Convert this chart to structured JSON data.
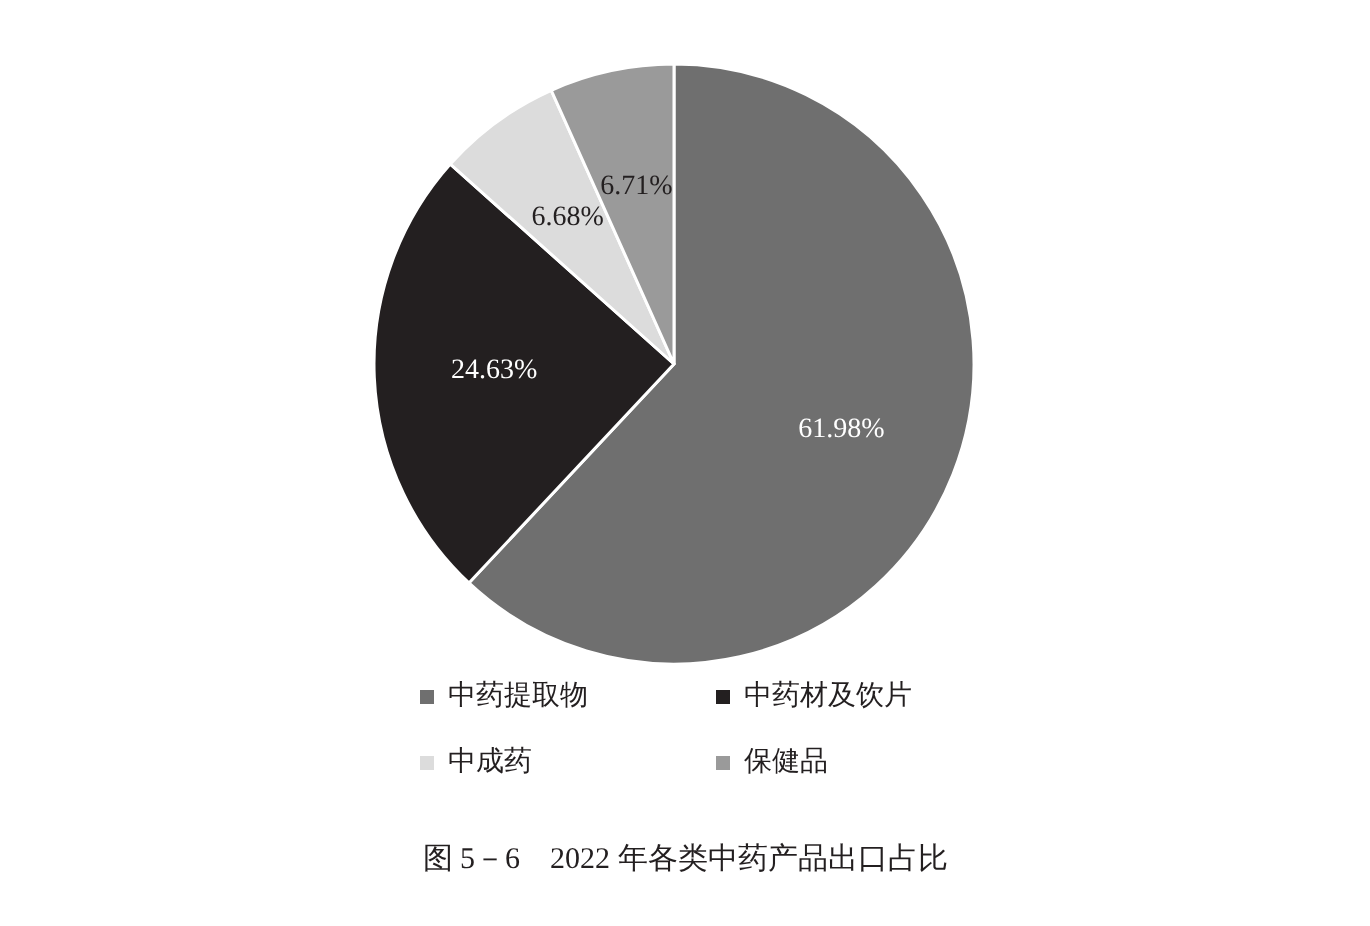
{
  "chart_data": {
    "type": "pie",
    "title": "图 5－6　2022 年各类中药产品出口占比",
    "categories": [
      "中药提取物",
      "中药材及饮片",
      "中成药",
      "保健品"
    ],
    "values": [
      61.98,
      24.63,
      6.68,
      6.71
    ],
    "colors": [
      "#6f6f6f",
      "#231f20",
      "#dcdcdc",
      "#9a9a9a"
    ],
    "value_labels": [
      "61.98%",
      "24.63%",
      "6.68%",
      "6.71%"
    ],
    "legend": "bottom"
  }
}
